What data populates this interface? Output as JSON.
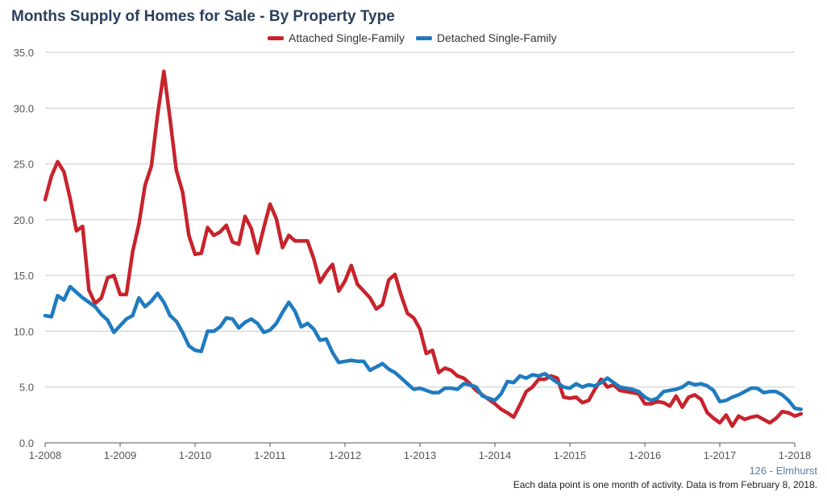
{
  "chart_data": {
    "type": "line",
    "title": "Months Supply of Homes for Sale - By Property Type",
    "xlabel": "",
    "ylabel": "",
    "ylim": [
      0,
      35
    ],
    "yticks": [
      "0.0",
      "5.0",
      "10.0",
      "15.0",
      "20.0",
      "25.0",
      "30.0",
      "35.0"
    ],
    "xticks": [
      "1-2008",
      "1-2009",
      "1-2010",
      "1-2011",
      "1-2012",
      "1-2013",
      "1-2014",
      "1-2015",
      "1-2016",
      "1-2017",
      "1-2018"
    ],
    "x_start": "1-2008",
    "x_end": "1-2018",
    "grid": "horizontal",
    "legend_position": "top-center",
    "series": [
      {
        "name": "Attached Single-Family",
        "color": "#c8232c",
        "values": [
          21.8,
          23.9,
          25.2,
          24.3,
          21.9,
          19.0,
          19.4,
          13.7,
          12.5,
          13.0,
          14.8,
          15.0,
          13.3,
          13.3,
          17.1,
          19.6,
          23.1,
          24.8,
          29.4,
          33.3,
          29.0,
          24.4,
          22.5,
          18.6,
          16.9,
          17.0,
          19.3,
          18.6,
          18.9,
          19.5,
          18.0,
          17.8,
          20.3,
          19.2,
          17.0,
          19.3,
          21.4,
          20.1,
          17.5,
          18.6,
          18.1,
          18.1,
          18.1,
          16.5,
          14.4,
          15.3,
          16.0,
          13.6,
          14.5,
          15.9,
          14.2,
          13.6,
          13.0,
          12.0,
          12.4,
          14.6,
          15.1,
          13.2,
          11.6,
          11.2,
          10.2,
          8.0,
          8.3,
          6.3,
          6.7,
          6.5,
          6.0,
          5.8,
          5.3,
          4.7,
          4.3,
          3.9,
          3.5,
          3.0,
          2.7,
          2.3,
          3.4,
          4.6,
          5.0,
          5.7,
          5.7,
          6.0,
          5.8,
          4.1,
          4.0,
          4.1,
          3.6,
          3.8,
          4.8,
          5.7,
          5.0,
          5.2,
          4.7,
          4.6,
          4.5,
          4.4,
          3.5,
          3.5,
          3.7,
          3.6,
          3.3,
          4.2,
          3.2,
          4.1,
          4.3,
          3.9,
          2.7,
          2.2,
          1.8,
          2.5,
          1.5,
          2.4,
          2.1,
          2.3,
          2.4,
          2.1,
          1.8,
          2.2,
          2.8,
          2.7,
          2.4,
          2.6
        ]
      },
      {
        "name": "Detached Single-Family",
        "color": "#1f7bbf",
        "values": [
          11.4,
          11.3,
          13.2,
          12.8,
          14.0,
          13.5,
          13.0,
          12.6,
          12.2,
          11.5,
          11.0,
          9.9,
          10.5,
          11.1,
          11.4,
          13.0,
          12.2,
          12.7,
          13.4,
          12.6,
          11.4,
          10.9,
          9.9,
          8.7,
          8.3,
          8.2,
          10.0,
          10.0,
          10.4,
          11.2,
          11.1,
          10.3,
          10.8,
          11.1,
          10.7,
          9.9,
          10.1,
          10.7,
          11.7,
          12.6,
          11.8,
          10.4,
          10.7,
          10.2,
          9.2,
          9.3,
          8.1,
          7.2,
          7.3,
          7.4,
          7.3,
          7.3,
          6.5,
          6.8,
          7.1,
          6.6,
          6.3,
          5.8,
          5.3,
          4.8,
          4.9,
          4.7,
          4.5,
          4.5,
          4.9,
          4.9,
          4.8,
          5.3,
          5.2,
          5.0,
          4.2,
          4.0,
          3.8,
          4.4,
          5.5,
          5.4,
          6.0,
          5.8,
          6.1,
          6.0,
          6.2,
          5.8,
          5.4,
          5.0,
          4.9,
          5.3,
          5.0,
          5.2,
          5.1,
          5.4,
          5.8,
          5.4,
          5.0,
          4.9,
          4.8,
          4.6,
          4.1,
          3.8,
          4.0,
          4.6,
          4.7,
          4.8,
          5.0,
          5.4,
          5.2,
          5.3,
          5.1,
          4.7,
          3.7,
          3.8,
          4.1,
          4.3,
          4.6,
          4.9,
          4.9,
          4.5,
          4.6,
          4.6,
          4.3,
          3.8,
          3.1,
          3.0
        ]
      }
    ]
  },
  "footer": {
    "area_label": "126 - Elmhurst",
    "note": "Each data point is one month of activity. Data is from February 8, 2018."
  }
}
